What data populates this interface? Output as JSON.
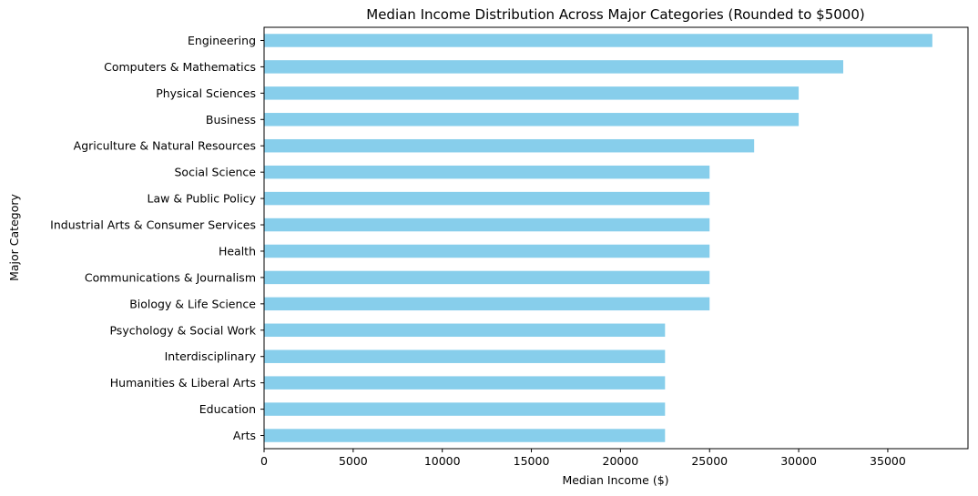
{
  "chart_data": {
    "type": "bar",
    "orientation": "horizontal",
    "title": "Median Income Distribution Across Major Categories (Rounded to $5000)",
    "xlabel": "Median Income ($)",
    "ylabel": "Major Category",
    "xlim": [
      0,
      39500
    ],
    "xticks": [
      0,
      5000,
      10000,
      15000,
      20000,
      25000,
      30000,
      35000
    ],
    "grid": false,
    "bar_color": "#87ceeb",
    "categories": [
      "Engineering",
      "Computers & Mathematics",
      "Physical Sciences",
      "Business",
      "Agriculture & Natural Resources",
      "Social Science",
      "Law & Public Policy",
      "Industrial Arts & Consumer Services",
      "Health",
      "Communications & Journalism",
      "Biology & Life Science",
      "Psychology & Social Work",
      "Interdisciplinary",
      "Humanities & Liberal Arts",
      "Education",
      "Arts"
    ],
    "values": [
      37500,
      32500,
      30000,
      30000,
      27500,
      25000,
      25000,
      25000,
      25000,
      25000,
      25000,
      22500,
      22500,
      22500,
      22500,
      22500
    ]
  }
}
